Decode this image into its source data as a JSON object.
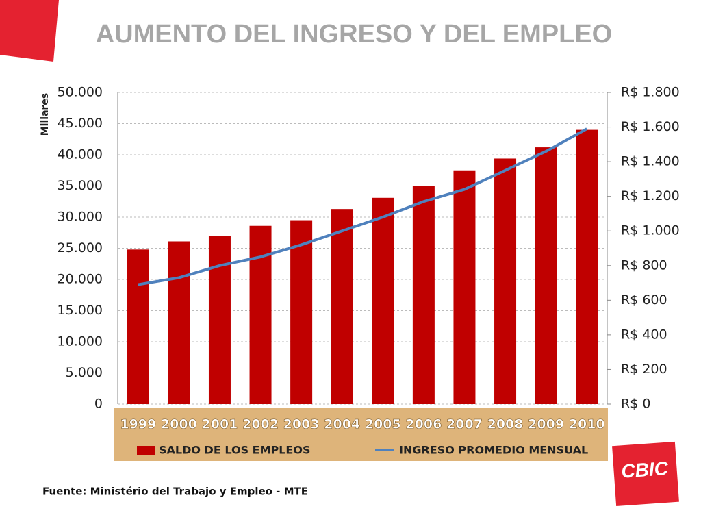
{
  "chart_data": {
    "type": "bar",
    "title": "AUMENTO DEL INGRESO Y DEL  EMPLEO",
    "y_label": "Millares",
    "categories": [
      "1999",
      "2000",
      "2001",
      "2002",
      "2003",
      "2004",
      "2005",
      "2006",
      "2007",
      "2008",
      "2009",
      "2010"
    ],
    "series": [
      {
        "name": "SALDO DE LOS EMPLEOS",
        "type": "bar",
        "color": "#c00000",
        "values": [
          24800,
          26100,
          27000,
          28600,
          29500,
          31300,
          33100,
          35000,
          37500,
          39400,
          41200,
          44000
        ]
      },
      {
        "name": "INGRESO PROMEDIO MENSUAL",
        "type": "line",
        "axis": "y2",
        "color": "#4f81bd",
        "values": [
          690,
          730,
          800,
          850,
          920,
          1000,
          1080,
          1170,
          1240,
          1350,
          1460,
          1590
        ]
      }
    ],
    "ylim": [
      0,
      50000
    ],
    "yticks": [
      0,
      {
        "value": 5000,
        "label": "5.000"
      },
      {
        "value": 10000,
        "label": "10.000"
      },
      {
        "value": 15000,
        "label": "15.000"
      },
      {
        "value": 20000,
        "label": "20.000"
      },
      {
        "value": 25000,
        "label": "25.000"
      },
      {
        "value": 30000,
        "label": "30.000"
      },
      {
        "value": 35000,
        "label": "35.000"
      },
      {
        "value": 40000,
        "label": "40.000"
      },
      {
        "value": 45000,
        "label": "45.000"
      },
      {
        "value": 50000,
        "label": "50.000"
      }
    ],
    "y2lim": [
      0,
      1800
    ],
    "y2ticks": [
      {
        "value": 0,
        "label": "R$ 0"
      },
      {
        "value": 200,
        "label": "R$ 200"
      },
      {
        "value": 400,
        "label": "R$ 400"
      },
      {
        "value": 600,
        "label": "R$ 600"
      },
      {
        "value": 800,
        "label": "R$ 800"
      },
      {
        "value": 1000,
        "label": "R$ 1.000"
      },
      {
        "value": 1200,
        "label": "R$ 1.200"
      },
      {
        "value": 1400,
        "label": "R$ 1.400"
      },
      {
        "value": 1600,
        "label": "R$ 1.600"
      },
      {
        "value": 1800,
        "label": "R$ 1.800"
      }
    ],
    "grid": true,
    "source": "Fuente: Ministério del Trabajo y Empleo - MTE",
    "logo": "CBIC"
  }
}
